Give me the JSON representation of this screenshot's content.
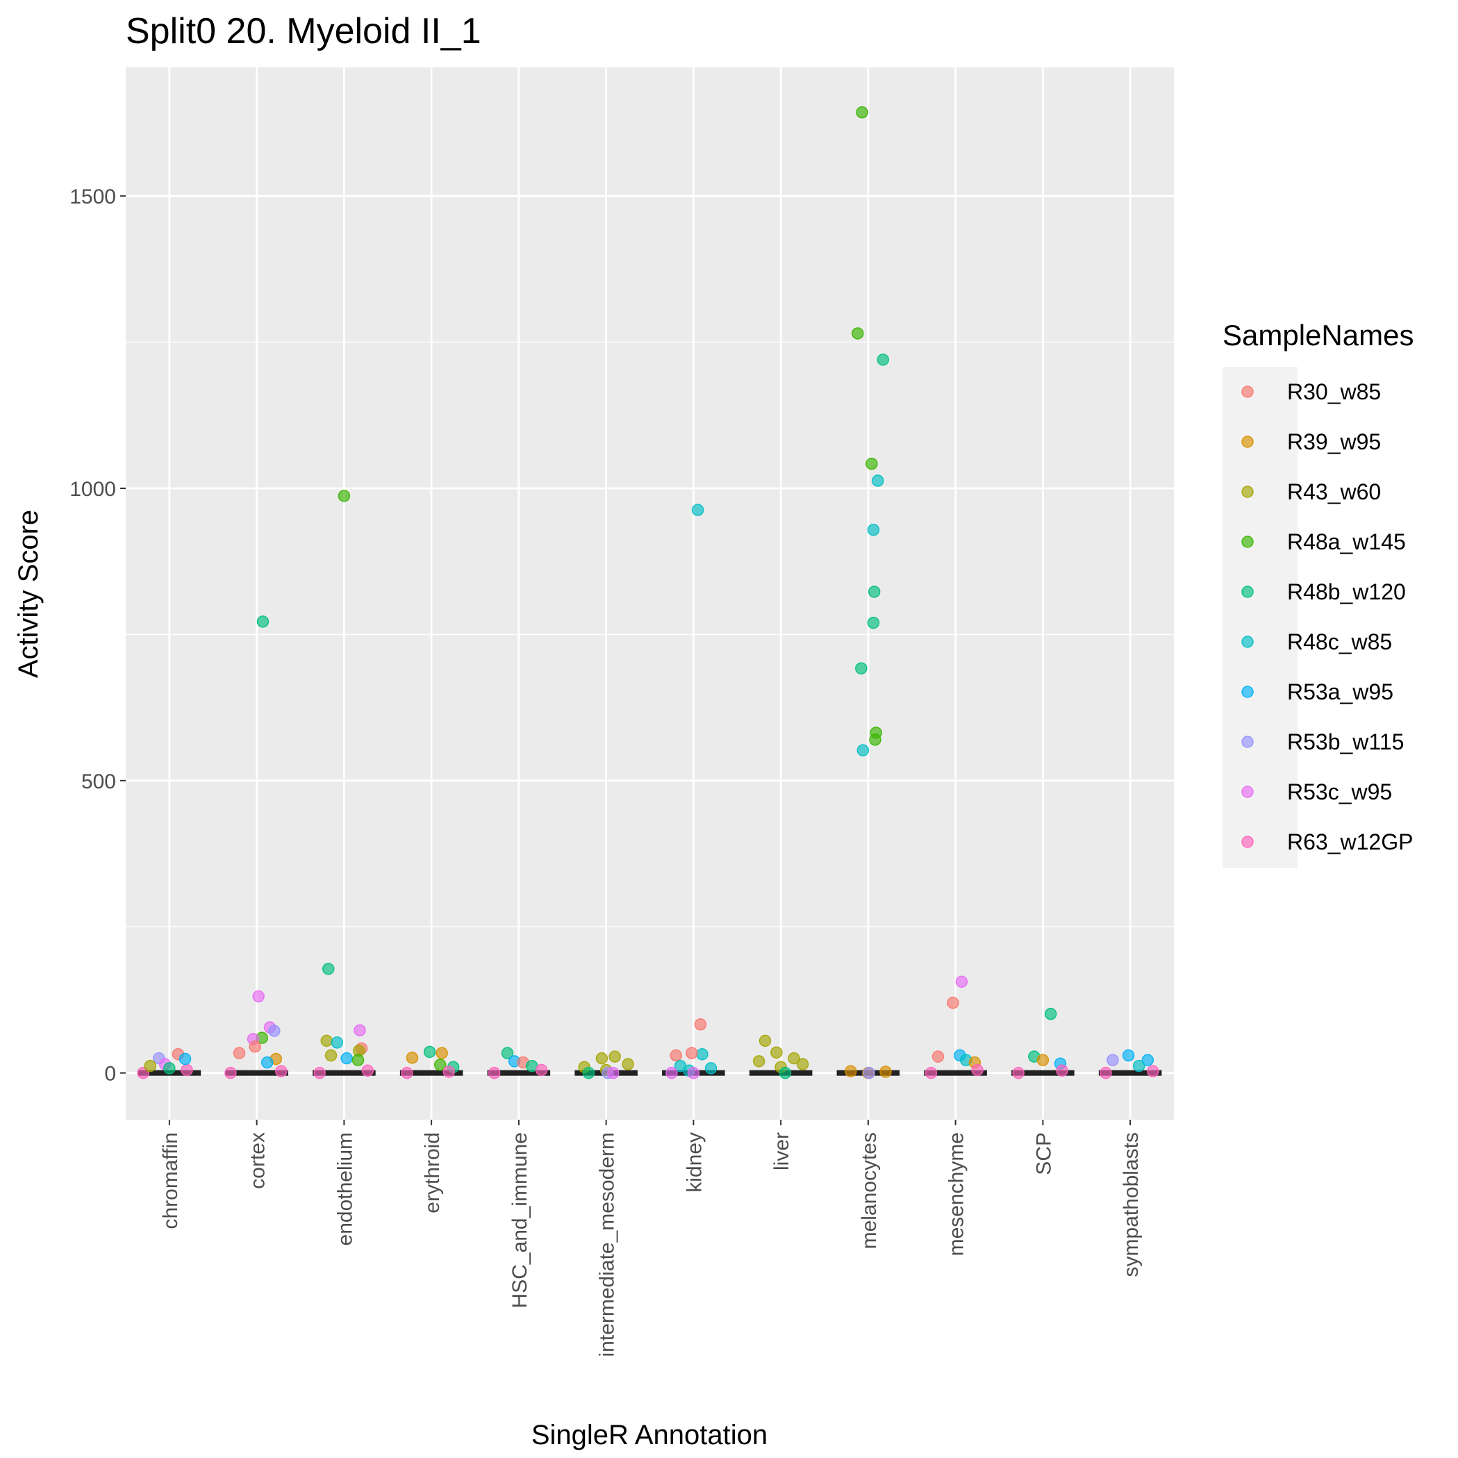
{
  "chart_data": {
    "type": "scatter",
    "title": "Split0 20. Myeloid II_1",
    "xlabel": "SingleR Annotation",
    "ylabel": "Activity Score",
    "ylim": [
      -80,
      1720
    ],
    "yticks": [
      0,
      500,
      1000,
      1500
    ],
    "grid": true,
    "legend": {
      "title": "SampleNames",
      "position": "right"
    },
    "categories": [
      "chromaffin",
      "cortex",
      "endothelium",
      "erythroid",
      "HSC_and_immune",
      "intermediate_mesoderm",
      "kidney",
      "liver",
      "melanocytes",
      "mesenchyme",
      "SCP",
      "sympathoblasts"
    ],
    "series": [
      {
        "name": "R30_w85",
        "color": "#F8766D"
      },
      {
        "name": "R39_w95",
        "color": "#D89000"
      },
      {
        "name": "R43_w60",
        "color": "#A3A500"
      },
      {
        "name": "R48a_w145",
        "color": "#39B600"
      },
      {
        "name": "R48b_w120",
        "color": "#00BF7D"
      },
      {
        "name": "R48c_w85",
        "color": "#00BFC4"
      },
      {
        "name": "R53a_w95",
        "color": "#00B0F6"
      },
      {
        "name": "R53b_w115",
        "color": "#9590FF"
      },
      {
        "name": "R53c_w95",
        "color": "#E76BF3"
      },
      {
        "name": "R63_w12GP",
        "color": "#FF62BC"
      }
    ],
    "points": [
      {
        "category": "chromaffin",
        "series": "R63_w12GP",
        "jitter": -0.3,
        "y": 0
      },
      {
        "category": "chromaffin",
        "series": "R63_w12GP",
        "jitter": 0.2,
        "y": 5
      },
      {
        "category": "chromaffin",
        "series": "R53b_w115",
        "jitter": -0.12,
        "y": 25
      },
      {
        "category": "chromaffin",
        "series": "R30_w85",
        "jitter": 0.1,
        "y": 32
      },
      {
        "category": "chromaffin",
        "series": "R53a_w95",
        "jitter": 0.18,
        "y": 24
      },
      {
        "category": "chromaffin",
        "series": "R53c_w95",
        "jitter": -0.05,
        "y": 15
      },
      {
        "category": "chromaffin",
        "series": "R48b_w120",
        "jitter": 0.0,
        "y": 8
      },
      {
        "category": "chromaffin",
        "series": "R43_w60",
        "jitter": -0.22,
        "y": 12
      },
      {
        "category": "cortex",
        "series": "R48b_w120",
        "jitter": 0.07,
        "y": 772
      },
      {
        "category": "cortex",
        "series": "R53c_w95",
        "jitter": 0.02,
        "y": 131
      },
      {
        "category": "cortex",
        "series": "R53c_w95",
        "jitter": 0.15,
        "y": 78
      },
      {
        "category": "cortex",
        "series": "R53b_w115",
        "jitter": 0.2,
        "y": 72
      },
      {
        "category": "cortex",
        "series": "R48a_w145",
        "jitter": 0.06,
        "y": 60
      },
      {
        "category": "cortex",
        "series": "R53c_w95",
        "jitter": -0.04,
        "y": 58
      },
      {
        "category": "cortex",
        "series": "R30_w85",
        "jitter": -0.2,
        "y": 34
      },
      {
        "category": "cortex",
        "series": "R30_w85",
        "jitter": -0.02,
        "y": 45
      },
      {
        "category": "cortex",
        "series": "R39_w95",
        "jitter": 0.22,
        "y": 24
      },
      {
        "category": "cortex",
        "series": "R63_w12GP",
        "jitter": -0.3,
        "y": 0
      },
      {
        "category": "cortex",
        "series": "R63_w12GP",
        "jitter": 0.28,
        "y": 3
      },
      {
        "category": "cortex",
        "series": "R53a_w95",
        "jitter": 0.12,
        "y": 18
      },
      {
        "category": "endothelium",
        "series": "R48a_w145",
        "jitter": 0.0,
        "y": 987
      },
      {
        "category": "endothelium",
        "series": "R48b_w120",
        "jitter": -0.18,
        "y": 178
      },
      {
        "category": "endothelium",
        "series": "R53c_w95",
        "jitter": 0.18,
        "y": 73
      },
      {
        "category": "endothelium",
        "series": "R43_w60",
        "jitter": -0.2,
        "y": 55
      },
      {
        "category": "endothelium",
        "series": "R48c_w85",
        "jitter": -0.08,
        "y": 52
      },
      {
        "category": "endothelium",
        "series": "R30_w85",
        "jitter": 0.2,
        "y": 42
      },
      {
        "category": "endothelium",
        "series": "R43_w60",
        "jitter": 0.17,
        "y": 38
      },
      {
        "category": "endothelium",
        "series": "R43_w60",
        "jitter": -0.15,
        "y": 30
      },
      {
        "category": "endothelium",
        "series": "R53a_w95",
        "jitter": 0.03,
        "y": 25
      },
      {
        "category": "endothelium",
        "series": "R48a_w145",
        "jitter": 0.16,
        "y": 22
      },
      {
        "category": "endothelium",
        "series": "R63_w12GP",
        "jitter": -0.28,
        "y": 0
      },
      {
        "category": "endothelium",
        "series": "R63_w12GP",
        "jitter": 0.27,
        "y": 4
      },
      {
        "category": "erythroid",
        "series": "R48b_w120",
        "jitter": -0.02,
        "y": 36
      },
      {
        "category": "erythroid",
        "series": "R39_w95",
        "jitter": 0.12,
        "y": 34
      },
      {
        "category": "erythroid",
        "series": "R39_w95",
        "jitter": -0.22,
        "y": 26
      },
      {
        "category": "erythroid",
        "series": "R48a_w145",
        "jitter": 0.1,
        "y": 14
      },
      {
        "category": "erythroid",
        "series": "R48b_w120",
        "jitter": 0.25,
        "y": 10
      },
      {
        "category": "erythroid",
        "series": "R63_w12GP",
        "jitter": -0.28,
        "y": 0
      },
      {
        "category": "erythroid",
        "series": "R63_w12GP",
        "jitter": 0.2,
        "y": 2
      },
      {
        "category": "HSC_and_immune",
        "series": "R48b_w120",
        "jitter": -0.13,
        "y": 34
      },
      {
        "category": "HSC_and_immune",
        "series": "R53a_w95",
        "jitter": -0.05,
        "y": 20
      },
      {
        "category": "HSC_and_immune",
        "series": "R30_w85",
        "jitter": 0.05,
        "y": 18
      },
      {
        "category": "HSC_and_immune",
        "series": "R48b_w120",
        "jitter": 0.15,
        "y": 12
      },
      {
        "category": "HSC_and_immune",
        "series": "R63_w12GP",
        "jitter": -0.28,
        "y": 0
      },
      {
        "category": "HSC_and_immune",
        "series": "R63_w12GP",
        "jitter": 0.26,
        "y": 5
      },
      {
        "category": "intermediate_mesoderm",
        "series": "R43_w60",
        "jitter": -0.05,
        "y": 25
      },
      {
        "category": "intermediate_mesoderm",
        "series": "R43_w60",
        "jitter": 0.1,
        "y": 28
      },
      {
        "category": "intermediate_mesoderm",
        "series": "R43_w60",
        "jitter": 0.25,
        "y": 15
      },
      {
        "category": "intermediate_mesoderm",
        "series": "R43_w60",
        "jitter": -0.25,
        "y": 10
      },
      {
        "category": "intermediate_mesoderm",
        "series": "R43_w60",
        "jitter": 0.0,
        "y": 5
      },
      {
        "category": "intermediate_mesoderm",
        "series": "R48b_w120",
        "jitter": -0.2,
        "y": 0
      },
      {
        "category": "intermediate_mesoderm",
        "series": "R53b_w115",
        "jitter": 0.02,
        "y": 0
      },
      {
        "category": "intermediate_mesoderm",
        "series": "R53c_w95",
        "jitter": 0.08,
        "y": 0
      },
      {
        "category": "kidney",
        "series": "R48c_w85",
        "jitter": 0.05,
        "y": 963
      },
      {
        "category": "kidney",
        "series": "R30_w85",
        "jitter": 0.08,
        "y": 83
      },
      {
        "category": "kidney",
        "series": "R30_w85",
        "jitter": -0.2,
        "y": 30
      },
      {
        "category": "kidney",
        "series": "R48c_w85",
        "jitter": 0.1,
        "y": 32
      },
      {
        "category": "kidney",
        "series": "R30_w85",
        "jitter": -0.02,
        "y": 34
      },
      {
        "category": "kidney",
        "series": "R48c_w85",
        "jitter": -0.15,
        "y": 12
      },
      {
        "category": "kidney",
        "series": "R48c_w85",
        "jitter": 0.2,
        "y": 8
      },
      {
        "category": "kidney",
        "series": "R48c_w85",
        "jitter": -0.05,
        "y": 4
      },
      {
        "category": "kidney",
        "series": "R53c_w95",
        "jitter": -0.25,
        "y": 0
      },
      {
        "category": "kidney",
        "series": "R53c_w95",
        "jitter": 0.0,
        "y": 0
      },
      {
        "category": "liver",
        "series": "R43_w60",
        "jitter": -0.18,
        "y": 55
      },
      {
        "category": "liver",
        "series": "R43_w60",
        "jitter": -0.05,
        "y": 35
      },
      {
        "category": "liver",
        "series": "R43_w60",
        "jitter": 0.15,
        "y": 25
      },
      {
        "category": "liver",
        "series": "R43_w60",
        "jitter": -0.25,
        "y": 20
      },
      {
        "category": "liver",
        "series": "R43_w60",
        "jitter": 0.25,
        "y": 15
      },
      {
        "category": "liver",
        "series": "R43_w60",
        "jitter": 0.0,
        "y": 10
      },
      {
        "category": "liver",
        "series": "R48b_w120",
        "jitter": 0.05,
        "y": 0
      },
      {
        "category": "melanocytes",
        "series": "R48a_w145",
        "jitter": -0.07,
        "y": 1643
      },
      {
        "category": "melanocytes",
        "series": "R48a_w145",
        "jitter": -0.12,
        "y": 1265
      },
      {
        "category": "melanocytes",
        "series": "R48b_w120",
        "jitter": 0.17,
        "y": 1220
      },
      {
        "category": "melanocytes",
        "series": "R48a_w145",
        "jitter": 0.04,
        "y": 1042
      },
      {
        "category": "melanocytes",
        "series": "R48c_w85",
        "jitter": 0.11,
        "y": 1013
      },
      {
        "category": "melanocytes",
        "series": "R48c_w85",
        "jitter": 0.06,
        "y": 929
      },
      {
        "category": "melanocytes",
        "series": "R48b_w120",
        "jitter": 0.07,
        "y": 823
      },
      {
        "category": "melanocytes",
        "series": "R48b_w120",
        "jitter": 0.06,
        "y": 770
      },
      {
        "category": "melanocytes",
        "series": "R48b_w120",
        "jitter": -0.08,
        "y": 692
      },
      {
        "category": "melanocytes",
        "series": "R48a_w145",
        "jitter": 0.09,
        "y": 582
      },
      {
        "category": "melanocytes",
        "series": "R48a_w145",
        "jitter": 0.08,
        "y": 570
      },
      {
        "category": "melanocytes",
        "series": "R48c_w85",
        "jitter": -0.06,
        "y": 552
      },
      {
        "category": "melanocytes",
        "series": "R39_w95",
        "jitter": -0.2,
        "y": 3
      },
      {
        "category": "melanocytes",
        "series": "R39_w95",
        "jitter": 0.2,
        "y": 2
      },
      {
        "category": "melanocytes",
        "series": "R39_w95",
        "jitter": 0.0,
        "y": 0
      },
      {
        "category": "melanocytes",
        "series": "R53b_w115",
        "jitter": 0.01,
        "y": 0
      },
      {
        "category": "mesenchyme",
        "series": "R53c_w95",
        "jitter": 0.07,
        "y": 156
      },
      {
        "category": "mesenchyme",
        "series": "R30_w85",
        "jitter": -0.03,
        "y": 120
      },
      {
        "category": "mesenchyme",
        "series": "R30_w85",
        "jitter": -0.2,
        "y": 28
      },
      {
        "category": "mesenchyme",
        "series": "R53a_w95",
        "jitter": 0.05,
        "y": 30
      },
      {
        "category": "mesenchyme",
        "series": "R48c_w85",
        "jitter": 0.12,
        "y": 22
      },
      {
        "category": "mesenchyme",
        "series": "R39_w95",
        "jitter": 0.22,
        "y": 18
      },
      {
        "category": "mesenchyme",
        "series": "R63_w12GP",
        "jitter": -0.28,
        "y": 0
      },
      {
        "category": "mesenchyme",
        "series": "R63_w12GP",
        "jitter": 0.25,
        "y": 5
      },
      {
        "category": "SCP",
        "series": "R48b_w120",
        "jitter": 0.09,
        "y": 101
      },
      {
        "category": "SCP",
        "series": "R48b_w120",
        "jitter": -0.1,
        "y": 28
      },
      {
        "category": "SCP",
        "series": "R39_w95",
        "jitter": 0.0,
        "y": 22
      },
      {
        "category": "SCP",
        "series": "R53a_w95",
        "jitter": 0.2,
        "y": 16
      },
      {
        "category": "SCP",
        "series": "R63_w12GP",
        "jitter": -0.28,
        "y": 0
      },
      {
        "category": "SCP",
        "series": "R63_w12GP",
        "jitter": 0.22,
        "y": 4
      },
      {
        "category": "sympathoblasts",
        "series": "R53a_w95",
        "jitter": -0.02,
        "y": 30
      },
      {
        "category": "sympathoblasts",
        "series": "R53b_w115",
        "jitter": -0.2,
        "y": 22
      },
      {
        "category": "sympathoblasts",
        "series": "R53a_w95",
        "jitter": 0.2,
        "y": 22
      },
      {
        "category": "sympathoblasts",
        "series": "R48c_w85",
        "jitter": 0.1,
        "y": 12
      },
      {
        "category": "sympathoblasts",
        "series": "R63_w12GP",
        "jitter": -0.28,
        "y": 0
      },
      {
        "category": "sympathoblasts",
        "series": "R63_w12GP",
        "jitter": 0.26,
        "y": 3
      }
    ]
  }
}
